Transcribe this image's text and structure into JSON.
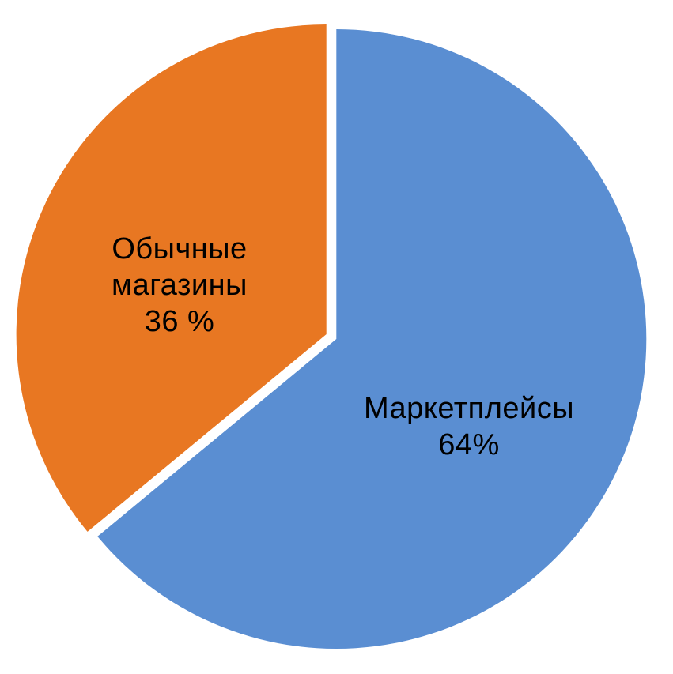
{
  "chart_data": {
    "type": "pie",
    "title": "",
    "legend": "none",
    "labels_position": "inside",
    "direction": "clockwise",
    "start_angle_deg": 0,
    "background_color": "#FFFFFF",
    "separator_color": "#FFFFFF",
    "label_color": "#000000",
    "slices": [
      {
        "label": "Маркетплейсы",
        "value": 64,
        "value_label": "64%",
        "color": "#5A8ED2"
      },
      {
        "label": "Обычные магазины",
        "value": 36,
        "value_label": "36 %",
        "color": "#E87722"
      }
    ]
  }
}
